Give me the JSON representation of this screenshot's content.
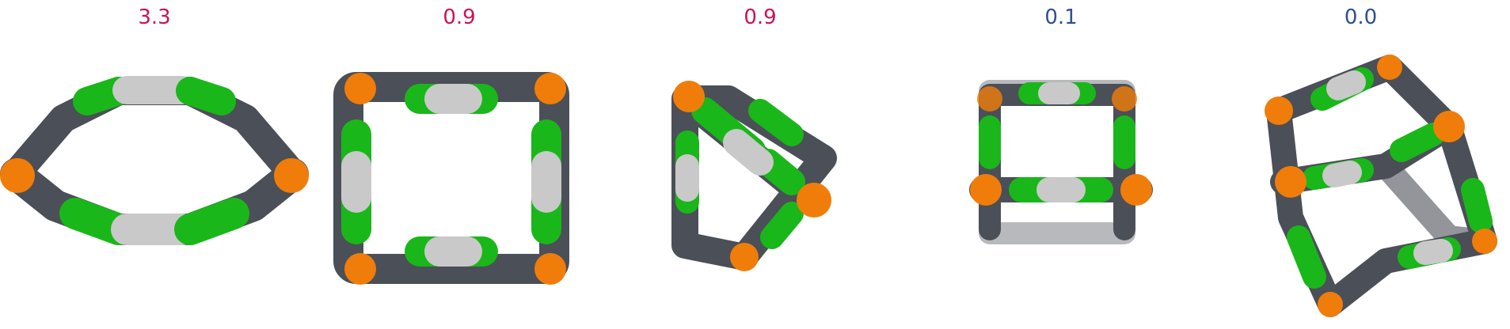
{
  "colors": {
    "carbon_gray": "#4b4f57",
    "silver": "#c9c9c9",
    "green": "#19b719",
    "orange": "#f07d0a",
    "label_red": "#c8145a",
    "label_blue": "#2f4f8f"
  },
  "panels": [
    {
      "label": "3.3",
      "label_color": "#c8145a",
      "shape": "flat-hexagonal-ring"
    },
    {
      "label": "0.9",
      "label_color": "#c8145a",
      "shape": "square-cage-front"
    },
    {
      "label": "0.9",
      "label_color": "#c8145a",
      "shape": "triangular-cage"
    },
    {
      "label": "0.1",
      "label_color": "#2f4f8f",
      "shape": "square-cage-perspective"
    },
    {
      "label": "0.0",
      "label_color": "#2f4f8f",
      "shape": "twisted-cubic-cage"
    }
  ]
}
